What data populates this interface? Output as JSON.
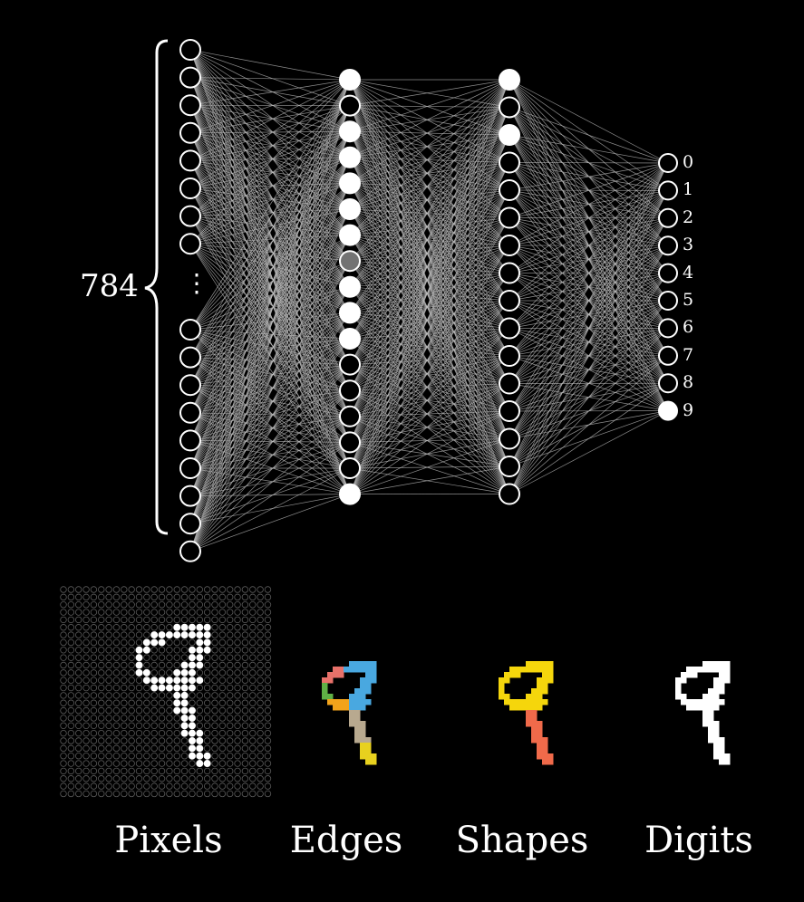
{
  "network": {
    "input_count_label": "784",
    "input_ellipsis": "⋮",
    "output_labels": [
      "0",
      "1",
      "2",
      "3",
      "4",
      "5",
      "6",
      "7",
      "8",
      "9"
    ],
    "layers": [
      {
        "kind": "input",
        "activations": [
          0,
          0,
          0,
          0,
          0,
          0,
          0,
          0,
          0,
          0,
          0,
          0,
          0,
          0,
          0,
          0,
          0
        ]
      },
      {
        "kind": "hidden",
        "activations": [
          1,
          0,
          1,
          1,
          1,
          1,
          1,
          0.45,
          1,
          1,
          1,
          0,
          0,
          0,
          0,
          0,
          1
        ]
      },
      {
        "kind": "hidden",
        "activations": [
          1,
          0,
          1,
          0,
          0,
          0,
          0,
          0,
          0,
          0,
          0,
          0,
          0,
          0,
          0,
          0
        ]
      },
      {
        "kind": "output",
        "activations": [
          0,
          0,
          0,
          0,
          0,
          0,
          0,
          0,
          0,
          1
        ]
      }
    ]
  },
  "panels": {
    "pixels_caption": "Pixels",
    "edges_caption": "Edges",
    "shapes_caption": "Shapes",
    "digits_caption": "Digits",
    "edge_colors": [
      "#e8716a",
      "#49a8e0",
      "#5fb045",
      "#f4c430",
      "#f2a31b",
      "#b8a98f",
      "#e8d11e"
    ],
    "shape_colors": [
      "#f5d60c",
      "#f06a4a"
    ],
    "digit_color": "#ffffff"
  }
}
